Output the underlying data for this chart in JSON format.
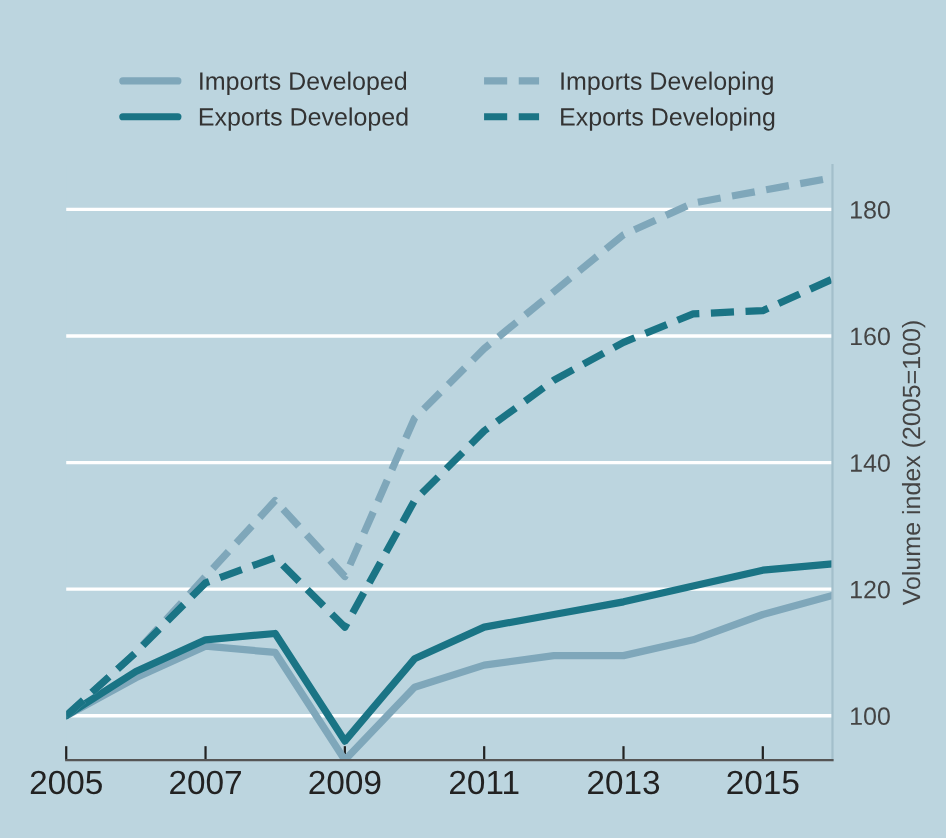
{
  "chart_data": {
    "type": "line",
    "ylabel": "Volume index (2005=100)",
    "x": [
      2005,
      2006,
      2007,
      2008,
      2009,
      2010,
      2011,
      2012,
      2013,
      2014,
      2015,
      2016
    ],
    "series": [
      {
        "name": "Imports Developed",
        "color": "#7fa7ba",
        "line_style": "solid",
        "values": [
          100,
          106,
          111,
          110,
          93,
          104.5,
          108,
          109.5,
          109.5,
          112,
          116,
          119
        ]
      },
      {
        "name": "Exports Developed",
        "color": "#1a7485",
        "line_style": "solid",
        "values": [
          100,
          107,
          112,
          113,
          96,
          109,
          114,
          116,
          118,
          120.5,
          123,
          124
        ]
      },
      {
        "name": "Imports Developing",
        "color": "#7fa7ba",
        "line_style": "dashed",
        "values": [
          100,
          110,
          122,
          134,
          122,
          147,
          158,
          167,
          176,
          181,
          183,
          185
        ]
      },
      {
        "name": "Exports Developing",
        "color": "#1a7485",
        "line_style": "dashed",
        "values": [
          100,
          110,
          121,
          125,
          114,
          134,
          145,
          153,
          159,
          163.5,
          164,
          169
        ]
      }
    ],
    "xlim": [
      2005,
      2016
    ],
    "xticks": [
      2005,
      2007,
      2009,
      2011,
      2013,
      2015
    ],
    "ylim": [
      93,
      187
    ],
    "yticks": [
      100,
      120,
      140,
      160,
      180
    ],
    "grid": "y",
    "legend": "top",
    "marker": "none"
  }
}
